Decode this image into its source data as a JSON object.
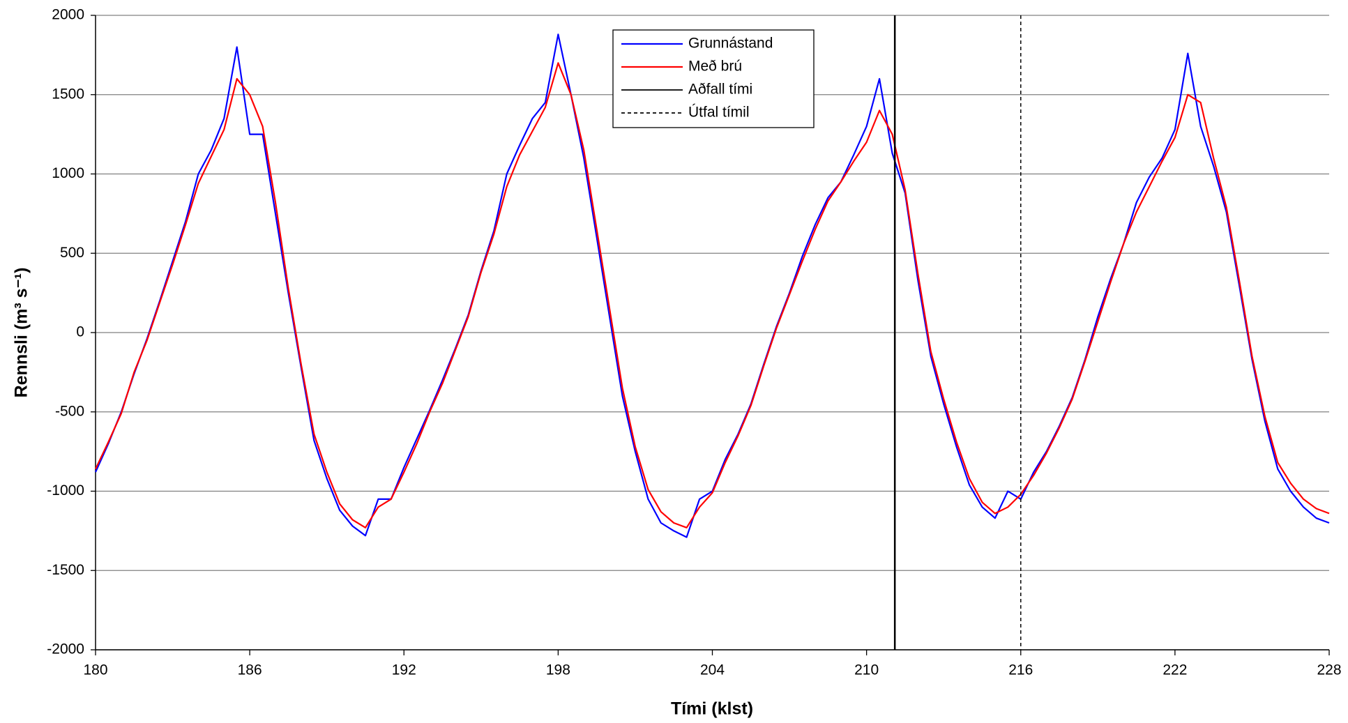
{
  "chart_data": {
    "type": "line",
    "xlabel": "Tími (klst)",
    "ylabel": "Rennsli (m³ s⁻¹)",
    "xlim": [
      180,
      228
    ],
    "ylim": [
      -2000,
      2000
    ],
    "xticks": [
      180,
      186,
      192,
      198,
      204,
      210,
      216,
      222,
      228
    ],
    "yticks": [
      -2000,
      -1500,
      -1000,
      -500,
      0,
      500,
      1000,
      1500,
      2000
    ],
    "grid": true,
    "legend": "top",
    "x": [
      180,
      180.5,
      181,
      181.5,
      182,
      182.5,
      183,
      183.5,
      184,
      184.5,
      185,
      185.5,
      186,
      186.5,
      187,
      187.5,
      188,
      188.5,
      189,
      189.5,
      190,
      190.5,
      191,
      191.5,
      192,
      192.5,
      193,
      193.5,
      194,
      194.5,
      195,
      195.5,
      196,
      196.5,
      197,
      197.5,
      198,
      198.5,
      199,
      199.5,
      200,
      200.5,
      201,
      201.5,
      202,
      202.5,
      203,
      203.5,
      204,
      204.5,
      205,
      205.5,
      206,
      206.5,
      207,
      207.5,
      208,
      208.5,
      209,
      209.5,
      210,
      210.5,
      211,
      211.5,
      212,
      212.5,
      213,
      213.5,
      214,
      214.5,
      215,
      215.5,
      216,
      216.5,
      217,
      217.5,
      218,
      218.5,
      219,
      219.5,
      220,
      220.5,
      221,
      221.5,
      222,
      222.5,
      223,
      223.5,
      224,
      224.5,
      225,
      225.5,
      226,
      226.5,
      227,
      227.5,
      228
    ],
    "series": [
      {
        "name": "Grunnástand",
        "color": "#0000ff",
        "values": [
          -880,
          -700,
          -500,
          -260,
          -40,
          200,
          450,
          700,
          1000,
          1150,
          1350,
          1800,
          1250,
          1250,
          750,
          250,
          -220,
          -680,
          -920,
          -1120,
          -1220,
          -1280,
          -1050,
          -1050,
          -850,
          -670,
          -490,
          -300,
          -100,
          110,
          390,
          640,
          1000,
          1180,
          1350,
          1450,
          1880,
          1500,
          1100,
          600,
          100,
          -400,
          -750,
          -1050,
          -1200,
          -1250,
          -1290,
          -1050,
          -1000,
          -800,
          -640,
          -450,
          -200,
          40,
          250,
          480,
          680,
          850,
          950,
          1120,
          1300,
          1600,
          1130,
          880,
          330,
          -150,
          -450,
          -720,
          -960,
          -1100,
          -1170,
          -1000,
          -1050,
          -880,
          -750,
          -590,
          -410,
          -170,
          100,
          340,
          560,
          820,
          980,
          1100,
          1280,
          1760,
          1300,
          1050,
          760,
          300,
          -170,
          -560,
          -860,
          -1000,
          -1100,
          -1170,
          -1200
        ]
      },
      {
        "name": "Með brú",
        "color": "#ff0000",
        "values": [
          -860,
          -690,
          -510,
          -250,
          -50,
          190,
          430,
          680,
          940,
          1110,
          1280,
          1600,
          1500,
          1300,
          820,
          280,
          -200,
          -640,
          -880,
          -1080,
          -1180,
          -1230,
          -1100,
          -1050,
          -880,
          -700,
          -500,
          -320,
          -110,
          100,
          380,
          620,
          920,
          1120,
          1270,
          1420,
          1700,
          1500,
          1150,
          650,
          150,
          -350,
          -720,
          -990,
          -1130,
          -1200,
          -1230,
          -1100,
          -1010,
          -820,
          -650,
          -460,
          -210,
          30,
          240,
          450,
          650,
          830,
          950,
          1080,
          1200,
          1400,
          1250,
          900,
          370,
          -120,
          -420,
          -690,
          -920,
          -1070,
          -1140,
          -1100,
          -1020,
          -900,
          -760,
          -600,
          -420,
          -180,
          70,
          320,
          560,
          760,
          920,
          1080,
          1230,
          1500,
          1450,
          1100,
          790,
          330,
          -150,
          -530,
          -820,
          -950,
          -1050,
          -1110,
          -1140
        ]
      }
    ],
    "vlines": [
      {
        "name": "Aðfall tími",
        "x": 211.1,
        "color": "#000000",
        "dash": false
      },
      {
        "name": "Útfal tímil",
        "x": 216,
        "color": "#000000",
        "dash": true
      }
    ]
  }
}
